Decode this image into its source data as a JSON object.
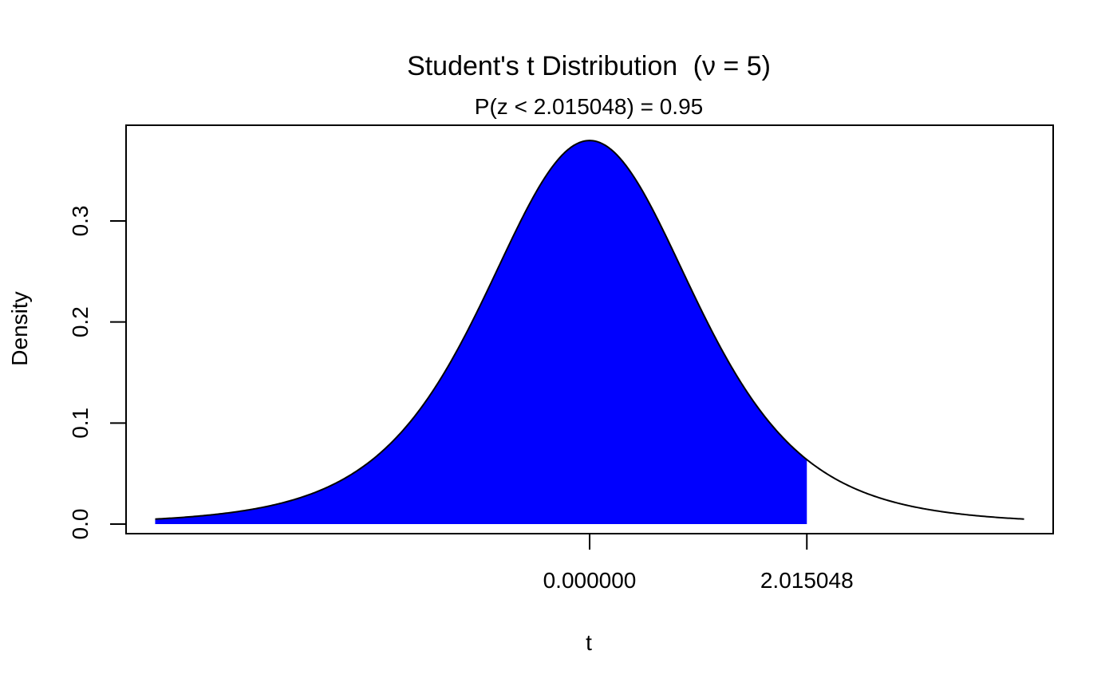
{
  "chart_data": {
    "type": "area",
    "title_text": "Student's t Distribution",
    "title_param": "(ν = 5)",
    "subtitle_pre": "P",
    "subtitle_inner": "(z < 2.015048)",
    "subtitle_post": " = 0.95",
    "xlabel": "t",
    "ylabel": "Density",
    "df": 5,
    "xlim": [
      -4.3,
      4.3
    ],
    "ylim": [
      0,
      0.38
    ],
    "curve_range": [
      -4.03,
      4.03
    ],
    "shade_from": -4.03,
    "shade_to": 2.015048,
    "x_ticks": [
      {
        "value": 0,
        "label": "0.000000"
      },
      {
        "value": 2.015048,
        "label": "2.015048"
      }
    ],
    "y_ticks": [
      {
        "value": 0.0,
        "label": "0.0"
      },
      {
        "value": 0.1,
        "label": "0.1"
      },
      {
        "value": 0.2,
        "label": "0.2"
      },
      {
        "value": 0.3,
        "label": "0.3"
      }
    ],
    "grid": false,
    "fill_color": "#0000ff",
    "line_color": "#000000"
  }
}
